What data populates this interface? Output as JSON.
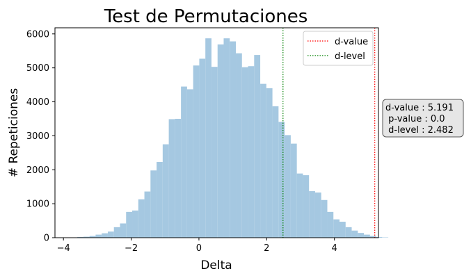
{
  "chart_data": {
    "type": "bar",
    "title": "Test de Permutaciones",
    "xlabel": "Delta",
    "ylabel": "# Repeticiones",
    "xlim": [
      -4.25,
      5.3
    ],
    "ylim": [
      0,
      6180
    ],
    "xticks": [
      -4,
      -2,
      0,
      2,
      4
    ],
    "yticks": [
      0,
      1000,
      2000,
      3000,
      4000,
      5000,
      6000
    ],
    "bins": {
      "start": -3.95,
      "width": 0.18,
      "counts": [
        0,
        10,
        20,
        30,
        50,
        90,
        130,
        180,
        310,
        420,
        760,
        800,
        1130,
        1360,
        1980,
        2230,
        2750,
        3490,
        3500,
        4450,
        4370,
        5070,
        5270,
        5870,
        5030,
        5690,
        5870,
        5780,
        5430,
        5020,
        5050,
        5380,
        4530,
        4400,
        3870,
        3410,
        3020,
        2770,
        1890,
        1840,
        1370,
        1330,
        1110,
        760,
        540,
        470,
        310,
        210,
        140,
        90,
        50,
        20,
        10,
        0
      ]
    },
    "bar_color": "#a5c8e1",
    "lines": [
      {
        "name": "d-value",
        "x": 5.191,
        "color": "#ff0000",
        "style": "dotted"
      },
      {
        "name": "d-level",
        "x": 2.482,
        "color": "#008000",
        "style": "dotted"
      }
    ],
    "legend_position": "upper-right",
    "annotation": [
      "d-value : 5.191",
      " p-value : 0.0",
      " d-level : 2.482"
    ]
  }
}
